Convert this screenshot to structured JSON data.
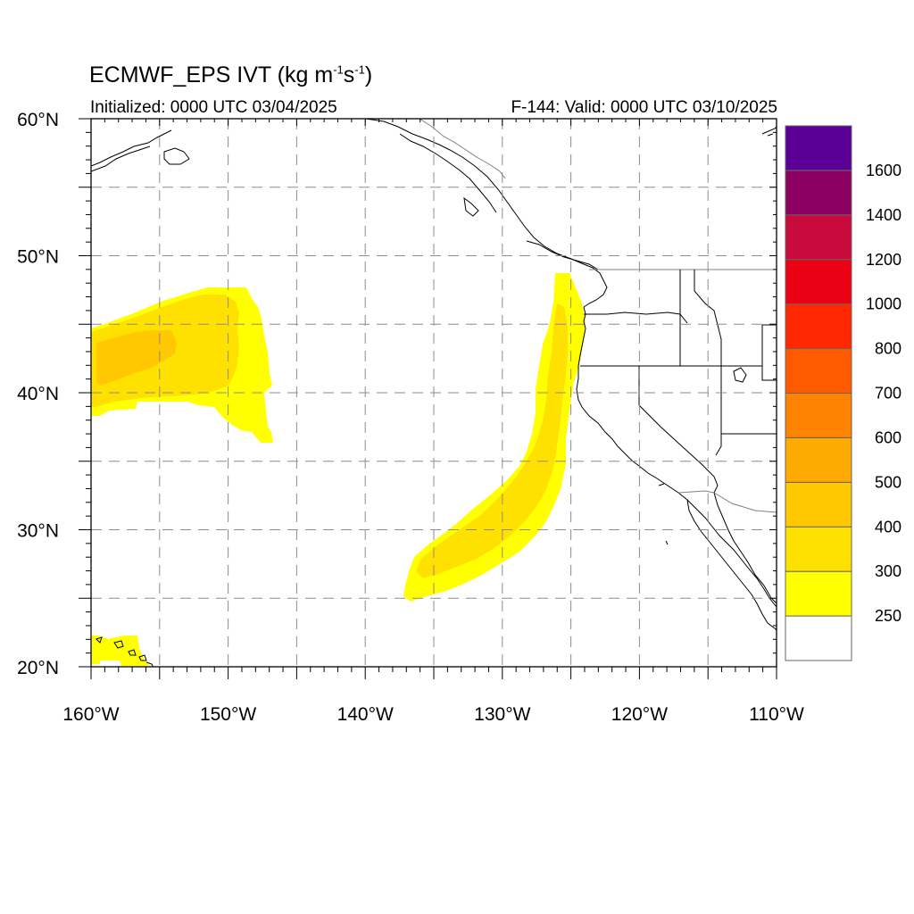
{
  "header": {
    "title_main": "ECMWF_EPS IVT (kg m",
    "title_exp1": "-1",
    "title_mid": "s",
    "title_exp2": "-1",
    "title_end": ")",
    "initialized": "Initialized: 0000 UTC 03/04/2025",
    "valid": "F-144: Valid: 0000 UTC 03/10/2025"
  },
  "axes": {
    "lon_range": [
      -160,
      -110
    ],
    "lat_range": [
      20,
      60
    ],
    "lon_ticks": [
      {
        "value": -160,
        "label": "160°W"
      },
      {
        "value": -150,
        "label": "150°W"
      },
      {
        "value": -140,
        "label": "140°W"
      },
      {
        "value": -130,
        "label": "130°W"
      },
      {
        "value": -120,
        "label": "120°W"
      },
      {
        "value": -110,
        "label": "110°W"
      }
    ],
    "lat_ticks": [
      {
        "value": 60,
        "label": "60°N"
      },
      {
        "value": 50,
        "label": "50°N"
      },
      {
        "value": 40,
        "label": "40°N"
      },
      {
        "value": 30,
        "label": "30°N"
      },
      {
        "value": 20,
        "label": "20°N"
      }
    ],
    "grid": "dashed every 5 degrees"
  },
  "colorbar": {
    "levels": [
      "250",
      "300",
      "400",
      "500",
      "600",
      "700",
      "800",
      "1000",
      "1200",
      "1400",
      "1600"
    ],
    "colors": [
      "#ffffff",
      "#ffff00",
      "#ffe100",
      "#ffc800",
      "#ffaa00",
      "#ff8200",
      "#ff5a00",
      "#ff2800",
      "#eb0014",
      "#c80a3c",
      "#8c0064",
      "#5a0096"
    ]
  },
  "ivt_regions": [
    {
      "name": "pacific-plume-yellow",
      "color": "#ffff00"
    },
    {
      "name": "pacific-plume-300",
      "color": "#ffe100"
    },
    {
      "name": "pacific-plume-core",
      "color": "#ffc800"
    },
    {
      "name": "atmospheric-river-yellow",
      "color": "#ffff00"
    },
    {
      "name": "atmospheric-river-300",
      "color": "#ffe100"
    },
    {
      "name": "hawaii-yellow",
      "color": "#ffff00"
    }
  ]
}
